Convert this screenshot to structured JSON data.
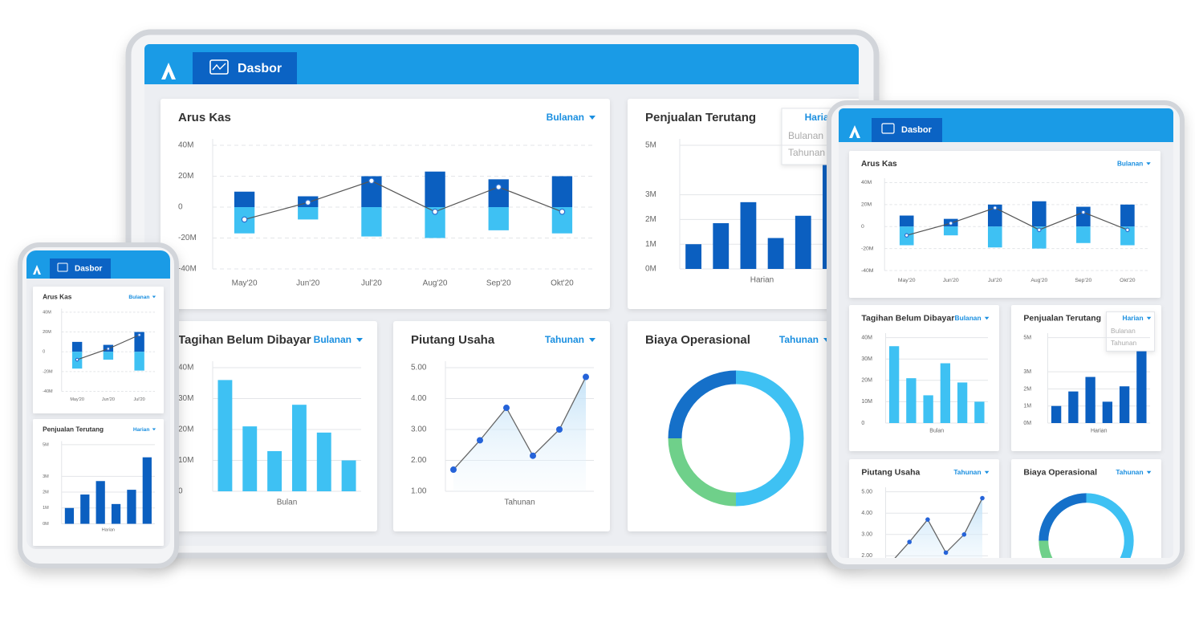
{
  "device_tab": "Dasbor",
  "widgets": {
    "arus_kas": {
      "type": "combo",
      "title": "Arus Kas",
      "period": "Bulanan",
      "categories": [
        "May'20",
        "Jun'20",
        "Jul'20",
        "Aug'20",
        "Sep'20",
        "Okt'20"
      ],
      "positive": [
        10,
        7,
        20,
        23,
        18,
        20
      ],
      "negative": [
        -17,
        -8,
        -19,
        -20,
        -15,
        -17
      ],
      "line": [
        -8,
        3,
        17,
        -3,
        13,
        -3
      ],
      "colors": [
        "#0b5fc0",
        "#3ec1f3",
        "#555555"
      ],
      "ylim": [
        -40,
        40
      ],
      "yticks": [
        {
          "value": 40,
          "label": "40M"
        },
        {
          "value": 20,
          "label": "20M"
        },
        0,
        {
          "value": -20,
          "label": "-20M"
        },
        {
          "value": -40,
          "label": "-40M"
        }
      ]
    },
    "penjualan_terutang": {
      "type": "bar",
      "title": "Penjualan Terutang",
      "period": "Harian",
      "options": [
        "Bulanan",
        "Tahunan"
      ],
      "x_label": "Harian",
      "values": [
        1,
        1.85,
        2.7,
        1.25,
        2.15,
        4.2
      ],
      "color": "#0b5fc0",
      "ylim": [
        0,
        5
      ],
      "yticks": [
        {
          "value": 0,
          "label": "0M"
        },
        {
          "value": 1,
          "label": "1M"
        },
        {
          "value": 2,
          "label": "2M"
        },
        {
          "value": 3,
          "label": "3M"
        },
        {
          "value": 5,
          "label": "5M"
        }
      ]
    },
    "tagihan_belum_dibayar": {
      "type": "bar",
      "title": "Tagihan Belum Dibayar",
      "period": "Bulanan",
      "x_label": "Bulan",
      "values": [
        36,
        21,
        13,
        28,
        19,
        10
      ],
      "color": "#3ec1f3",
      "ylim": [
        0,
        40
      ],
      "yticks": [
        0,
        {
          "value": 10,
          "label": "10M"
        },
        {
          "value": 20,
          "label": "20M"
        },
        {
          "value": 30,
          "label": "30M"
        },
        {
          "value": 40,
          "label": "40M"
        }
      ]
    },
    "piutang_usaha": {
      "type": "line",
      "title": "Piutang Usaha",
      "period": "Tahunan",
      "x_label": "Tahunan",
      "values": [
        1.7,
        2.65,
        3.7,
        2.15,
        3.0,
        4.7
      ],
      "color": "#2563d9",
      "ylim": [
        1,
        5
      ],
      "yticks": [
        {
          "value": 1,
          "label": "1.00"
        },
        {
          "value": 2,
          "label": "2.00"
        },
        {
          "value": 3,
          "label": "3.00"
        },
        {
          "value": 4,
          "label": "4.00"
        },
        {
          "value": 5,
          "label": "5.00"
        }
      ]
    },
    "biaya_operasional": {
      "type": "donut",
      "title": "Biaya Operasional",
      "period": "Tahunan",
      "values": [
        50,
        25,
        25
      ],
      "colors": [
        "#3ec1f3",
        "#6fd08a",
        "#1570c9"
      ]
    }
  }
}
